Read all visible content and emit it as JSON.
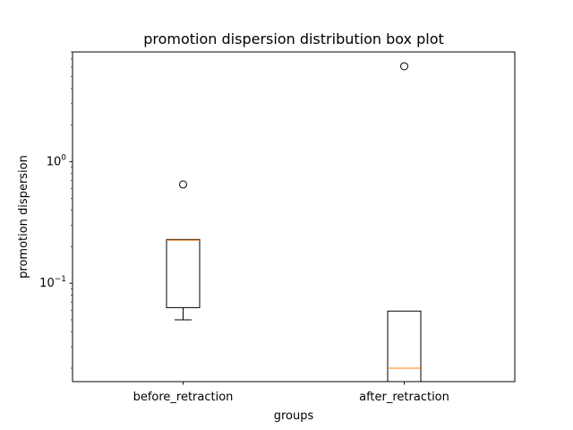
{
  "chart_data": {
    "type": "box",
    "title": "promotion dispersion distribution box plot",
    "xlabel": "groups",
    "ylabel": "promotion dispersion",
    "yscale": "log",
    "ylim": [
      0.0155,
      8.0
    ],
    "yticks": [
      {
        "value": 0.1,
        "base": "10",
        "exp": "−1"
      },
      {
        "value": 1.0,
        "base": "10",
        "exp": "0"
      }
    ],
    "grid": false,
    "legend": "none",
    "categories": [
      "before_retraction",
      "after_retraction"
    ],
    "boxes": [
      {
        "name": "before_retraction",
        "whisker_low": 0.05,
        "q1": 0.063,
        "median": 0.226,
        "q3": 0.229,
        "whisker_high": 0.229,
        "outliers": [
          0.65
        ]
      },
      {
        "name": "after_retraction",
        "whisker_low": 0.0155,
        "q1": 0.0155,
        "median": 0.02,
        "q3": 0.059,
        "whisker_high": 0.059,
        "outliers": [
          6.1
        ]
      }
    ],
    "colors": {
      "box": "#000000",
      "median": "#ff7f0e",
      "outlier": "#000000"
    }
  }
}
